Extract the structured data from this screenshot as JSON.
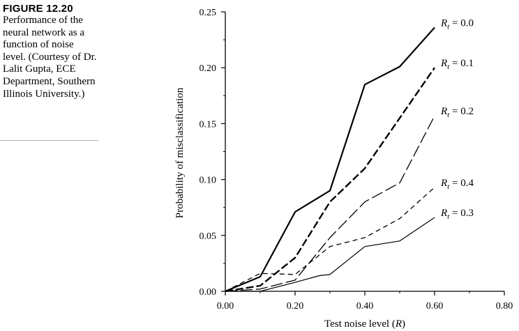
{
  "caption": {
    "figure_label": "FIGURE 12.20",
    "text": "Performance of the neural network as a function of noise level. (Courtesy of Dr. Lalit Gupta, ECE Department, Southern Illinois University.)"
  },
  "chart_data": {
    "type": "line",
    "title": "",
    "xlabel": "Test noise level (R)",
    "ylabel": "Probability of misclassification",
    "xlim": [
      0.0,
      0.8
    ],
    "ylim": [
      0.0,
      0.25
    ],
    "x_ticks": [
      "0.00",
      "0.20",
      "0.40",
      "0.60",
      "0.80"
    ],
    "y_ticks": [
      "0.00",
      "0.05",
      "0.10",
      "0.15",
      "0.20",
      "0.25"
    ],
    "grid": false,
    "series": [
      {
        "name": "Rt = 0.0",
        "label_var": "R",
        "label_sub": "t",
        "label_value": " = 0.0",
        "style": "solid-heavy",
        "x": [
          0.0,
          0.1,
          0.2,
          0.3,
          0.4,
          0.5,
          0.6
        ],
        "y": [
          0.0,
          0.013,
          0.071,
          0.09,
          0.185,
          0.201,
          0.236
        ]
      },
      {
        "name": "Rt = 0.1",
        "label_var": "R",
        "label_sub": "t",
        "label_value": " = 0.1",
        "style": "dash-heavy",
        "x": [
          0.0,
          0.1,
          0.2,
          0.3,
          0.4,
          0.5,
          0.6
        ],
        "y": [
          0.0,
          0.005,
          0.03,
          0.08,
          0.11,
          0.155,
          0.2
        ]
      },
      {
        "name": "Rt = 0.2",
        "label_var": "R",
        "label_sub": "t",
        "label_value": " = 0.2",
        "style": "long-dash",
        "x": [
          0.0,
          0.1,
          0.2,
          0.3,
          0.4,
          0.5,
          0.6
        ],
        "y": [
          0.0,
          0.002,
          0.01,
          0.048,
          0.08,
          0.097,
          0.157
        ]
      },
      {
        "name": "Rt = 0.4",
        "label_var": "R",
        "label_sub": "t",
        "label_value": " = 0.4",
        "style": "short-dash",
        "x": [
          0.0,
          0.1,
          0.2,
          0.3,
          0.4,
          0.5,
          0.6
        ],
        "y": [
          0.0,
          0.016,
          0.015,
          0.04,
          0.048,
          0.065,
          0.093
        ]
      },
      {
        "name": "Rt = 0.3",
        "label_var": "R",
        "label_sub": "t",
        "label_value": " = 0.3",
        "style": "solid-thin",
        "x": [
          0.0,
          0.1,
          0.2,
          0.27,
          0.3,
          0.4,
          0.5,
          0.6
        ],
        "y": [
          0.0,
          0.0,
          0.008,
          0.014,
          0.015,
          0.04,
          0.045,
          0.066
        ]
      }
    ]
  }
}
